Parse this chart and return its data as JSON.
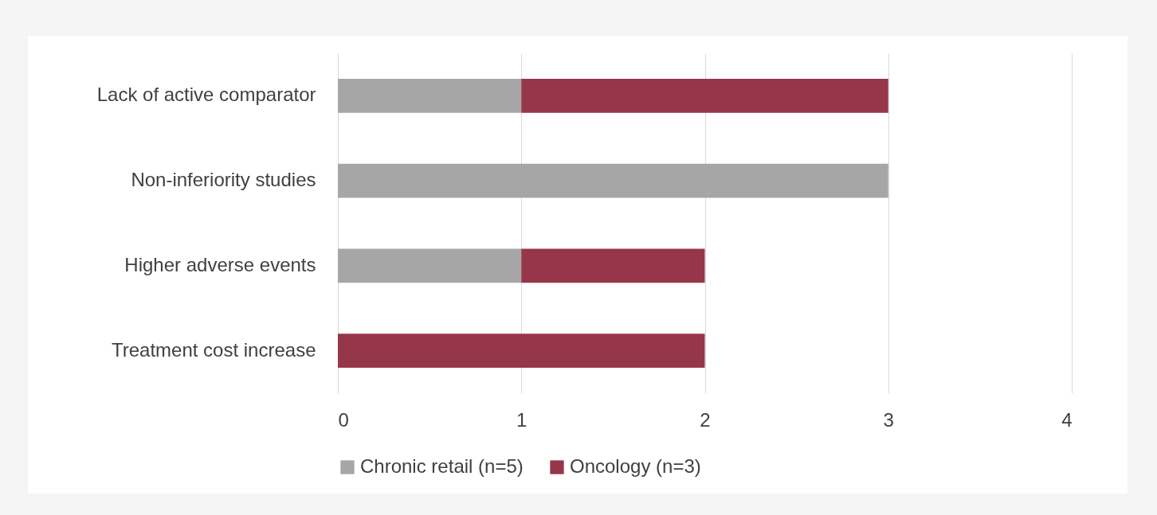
{
  "chart_data": {
    "type": "bar",
    "orientation": "horizontal",
    "stacked": true,
    "categories": [
      "Lack of active comparator",
      "Non-inferiority studies",
      "Higher adverse events",
      "Treatment cost increase"
    ],
    "series": [
      {
        "name": "Chronic retail (n=5)",
        "color": "#a6a6a6",
        "values": [
          1,
          3,
          1,
          0
        ]
      },
      {
        "name": "Oncology (n=3)",
        "color": "#96364a",
        "values": [
          2,
          0,
          1,
          2
        ]
      }
    ],
    "xlim": [
      0,
      4
    ],
    "xticks": [
      0,
      1,
      2,
      3,
      4
    ],
    "grid": "x",
    "legend": "bottom"
  }
}
